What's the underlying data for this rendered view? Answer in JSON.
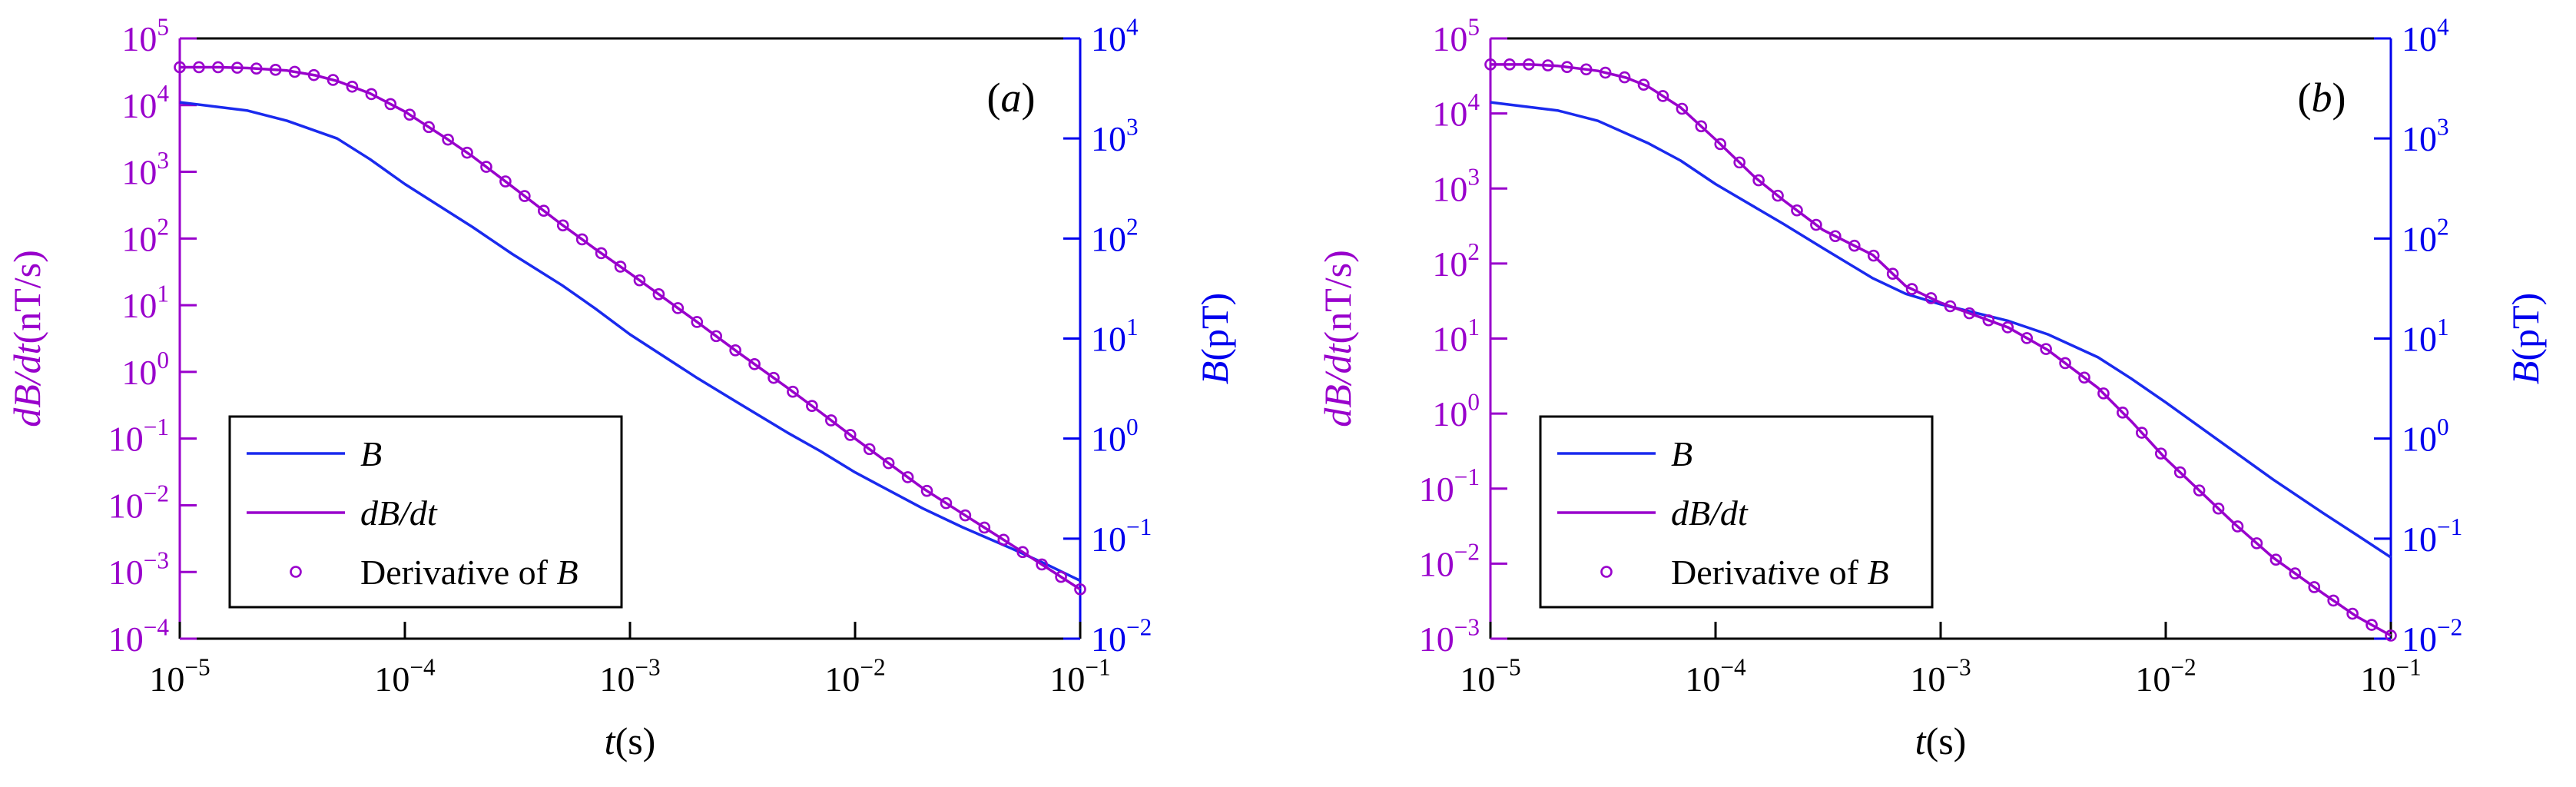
{
  "colors": {
    "left_axis": "#9900cc",
    "right_axis": "#0000ee",
    "b_line": "#1a2aee",
    "dbdt_line": "#9900cc",
    "frame": "#000000"
  },
  "chart_data": [
    {
      "type": "line",
      "panel_label": "(a)",
      "xlabel": "t(s)",
      "ylabel_left": "dB/dt(nT/s)",
      "ylabel_right": "B(pT)",
      "xscale": "log",
      "yscale_left": "log",
      "yscale_right": "log",
      "xlim": [
        1e-05,
        0.1
      ],
      "ylim_left": [
        0.0001,
        100000.0
      ],
      "ylim_right": [
        0.01,
        10000.0
      ],
      "x_ticks": [
        "10^-5",
        "10^-4",
        "10^-3",
        "10^-2",
        "10^-1"
      ],
      "y_left_ticks": [
        "10^-4",
        "10^-3",
        "10^-2",
        "10^-1",
        "10^0",
        "10^1",
        "10^2",
        "10^3",
        "10^4",
        "10^5"
      ],
      "y_right_ticks": [
        "10^-2",
        "10^-1",
        "10^0",
        "10^1",
        "10^2",
        "10^3",
        "10^4"
      ],
      "legend": {
        "position": "lower-left",
        "entries": [
          "B",
          "dB/dt",
          "Derivative of B"
        ]
      },
      "series": [
        {
          "name": "B",
          "axis": "right",
          "style": "line",
          "x": [
            1e-05,
            2e-05,
            3e-05,
            5e-05,
            7e-05,
            0.0001,
            0.0002,
            0.0003,
            0.0005,
            0.0007,
            0.001,
            0.002,
            0.003,
            0.005,
            0.007,
            0.01,
            0.02,
            0.03,
            0.05,
            0.07,
            0.1
          ],
          "y": [
            2300,
            1900,
            1500,
            1000,
            620,
            350,
            130,
            70,
            34,
            20,
            11,
            4.0,
            2.3,
            1.15,
            0.75,
            0.46,
            0.2,
            0.13,
            0.079,
            0.056,
            0.038
          ]
        },
        {
          "name": "dB/dt",
          "axis": "left",
          "style": "line",
          "x": [
            1e-05,
            1.5e-05,
            2e-05,
            3e-05,
            4e-05,
            5e-05,
            7e-05,
            0.0001,
            0.00015,
            0.0002,
            0.0003,
            0.0005,
            0.0007,
            0.001,
            0.002,
            0.003,
            0.005,
            0.007,
            0.01,
            0.02,
            0.03,
            0.05,
            0.07,
            0.1
          ],
          "y": [
            37000,
            37000,
            36000,
            33000,
            28000,
            23000,
            15000,
            8000,
            3300,
            1700,
            600,
            160,
            70,
            30,
            5.5,
            2.0,
            0.58,
            0.25,
            0.1,
            0.018,
            0.0075,
            0.0025,
            0.0012,
            0.00055
          ]
        },
        {
          "name": "Derivative of B",
          "axis": "left",
          "style": "markers",
          "x": [
            1e-05,
            1.5e-05,
            2e-05,
            3e-05,
            4e-05,
            5e-05,
            7e-05,
            0.0001,
            0.00015,
            0.0002,
            0.0003,
            0.0005,
            0.0007,
            0.001,
            0.002,
            0.003,
            0.005,
            0.007,
            0.01,
            0.02,
            0.03,
            0.05,
            0.07,
            0.1
          ],
          "y": [
            37000,
            37000,
            36000,
            33000,
            28000,
            23000,
            15000,
            8000,
            3300,
            1700,
            600,
            160,
            70,
            30,
            5.5,
            2.0,
            0.58,
            0.25,
            0.1,
            0.018,
            0.0075,
            0.0025,
            0.0012,
            0.00055
          ]
        }
      ]
    },
    {
      "type": "line",
      "panel_label": "(b)",
      "xlabel": "t(s)",
      "ylabel_left": "dB/dt(nT/s)",
      "ylabel_right": "B(pT)",
      "xscale": "log",
      "yscale_left": "log",
      "yscale_right": "log",
      "xlim": [
        1e-05,
        0.1
      ],
      "ylim_left": [
        0.001,
        100000.0
      ],
      "ylim_right": [
        0.01,
        10000.0
      ],
      "x_ticks": [
        "10^-5",
        "10^-4",
        "10^-3",
        "10^-2",
        "10^-1"
      ],
      "y_left_ticks": [
        "10^-3",
        "10^-2",
        "10^-1",
        "10^0",
        "10^1",
        "10^2",
        "10^3",
        "10^4",
        "10^5"
      ],
      "y_right_ticks": [
        "10^-2",
        "10^-1",
        "10^0",
        "10^1",
        "10^2",
        "10^3",
        "10^4"
      ],
      "legend": {
        "position": "lower-left",
        "entries": [
          "B",
          "dB/dt",
          "Derivative of B"
        ]
      },
      "series": [
        {
          "name": "B",
          "axis": "right",
          "style": "line",
          "x": [
            1e-05,
            2e-05,
            3e-05,
            5e-05,
            7e-05,
            0.0001,
            0.0002,
            0.0003,
            0.0005,
            0.0007,
            0.001,
            0.002,
            0.003,
            0.005,
            0.007,
            0.01,
            0.02,
            0.03,
            0.05,
            0.07,
            0.1
          ],
          "y": [
            2300,
            1900,
            1500,
            900,
            600,
            350,
            140,
            80,
            40,
            28,
            22,
            15,
            11,
            6.5,
            4.0,
            2.3,
            0.75,
            0.39,
            0.18,
            0.11,
            0.065
          ]
        },
        {
          "name": "dB/dt",
          "axis": "left",
          "style": "line",
          "x": [
            1e-05,
            1.5e-05,
            2e-05,
            3e-05,
            4e-05,
            5e-05,
            7e-05,
            0.0001,
            0.00015,
            0.0002,
            0.0003,
            0.0005,
            0.0007,
            0.001,
            0.002,
            0.003,
            0.005,
            0.007,
            0.01,
            0.02,
            0.03,
            0.05,
            0.07,
            0.1
          ],
          "y": [
            45000,
            45000,
            43000,
            37000,
            30000,
            23000,
            12000,
            4500,
            1400,
            700,
            280,
            130,
            50,
            30,
            14,
            7.0,
            2.2,
            0.8,
            0.25,
            0.035,
            0.012,
            0.004,
            0.002,
            0.0011
          ]
        },
        {
          "name": "Derivative of B",
          "axis": "left",
          "style": "markers",
          "x": [
            1e-05,
            1.5e-05,
            2e-05,
            3e-05,
            4e-05,
            5e-05,
            7e-05,
            0.0001,
            0.00015,
            0.0002,
            0.0003,
            0.0005,
            0.0007,
            0.001,
            0.002,
            0.003,
            0.005,
            0.007,
            0.01,
            0.02,
            0.03,
            0.05,
            0.07,
            0.1
          ],
          "y": [
            45000,
            45000,
            43000,
            37000,
            30000,
            23000,
            12000,
            4500,
            1400,
            700,
            280,
            130,
            50,
            30,
            14,
            7.0,
            2.2,
            0.8,
            0.25,
            0.035,
            0.012,
            0.004,
            0.002,
            0.0011
          ]
        }
      ]
    }
  ]
}
